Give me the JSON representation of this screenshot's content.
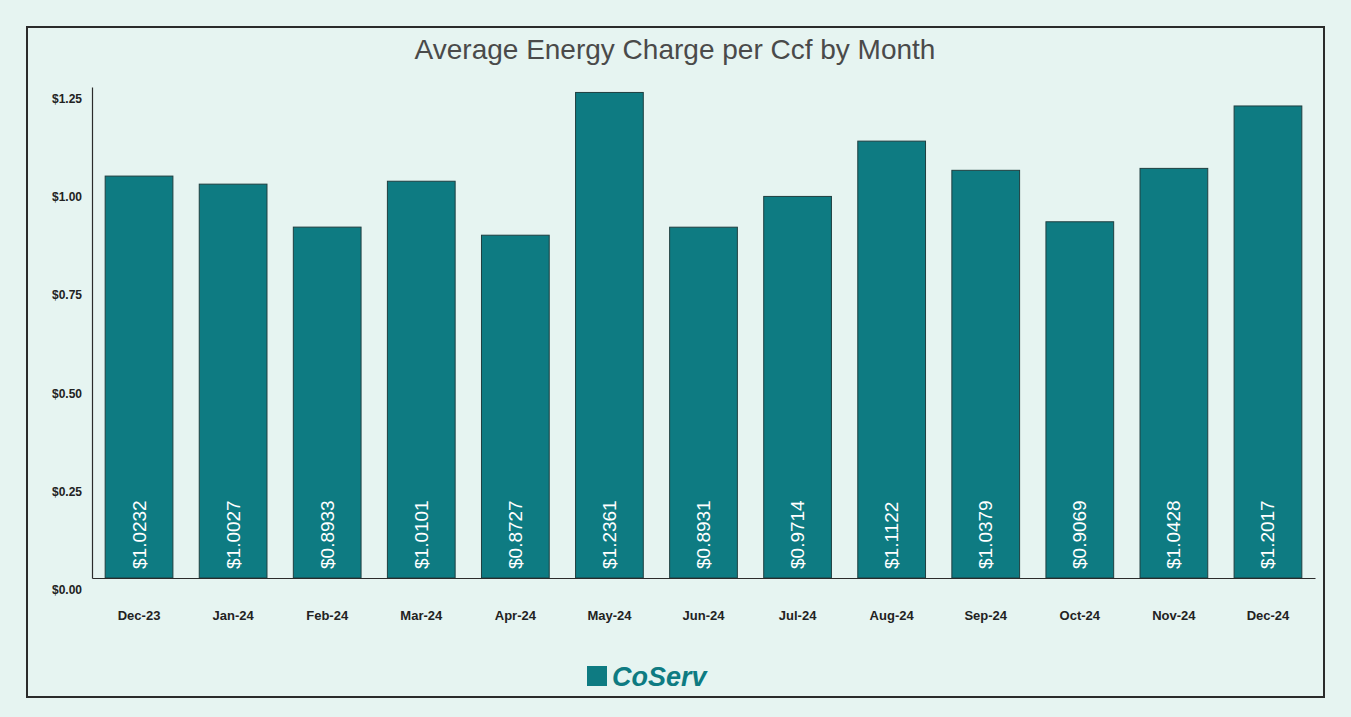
{
  "chart_data": {
    "type": "bar",
    "title": "Average Energy Charge per Ccf by Month",
    "categories": [
      "Dec-23",
      "Jan-24",
      "Feb-24",
      "Mar-24",
      "Apr-24",
      "May-24",
      "Jun-24",
      "Jul-24",
      "Aug-24",
      "Sep-24",
      "Oct-24",
      "Nov-24",
      "Dec-24"
    ],
    "values": [
      1.0232,
      1.0027,
      0.8933,
      1.0101,
      0.8727,
      1.2361,
      0.8931,
      0.9714,
      1.1122,
      1.0379,
      0.9069,
      1.0428,
      1.2017
    ],
    "value_labels": [
      "$1.0232",
      "$1.0027",
      "$0.8933",
      "$1.0101",
      "$0.8727",
      "$1.2361",
      "$0.8931",
      "$0.9714",
      "$1.1122",
      "$1.0379",
      "$0.9069",
      "$1.0428",
      "$1.2017"
    ],
    "color": "#0e7b82",
    "ylim": [
      0,
      1.25
    ],
    "yticks": [
      {
        "value": 0,
        "label": "$0.00"
      },
      {
        "value": 0.25,
        "label": "$0.25"
      },
      {
        "value": 0.5,
        "label": "$0.50"
      },
      {
        "value": 0.75,
        "label": "$0.75"
      },
      {
        "value": 1,
        "label": "$1.00"
      },
      {
        "value": 1.25,
        "label": "$1.25"
      }
    ],
    "grid": false,
    "data_labels": true,
    "annotations": [
      "CoServ"
    ]
  }
}
